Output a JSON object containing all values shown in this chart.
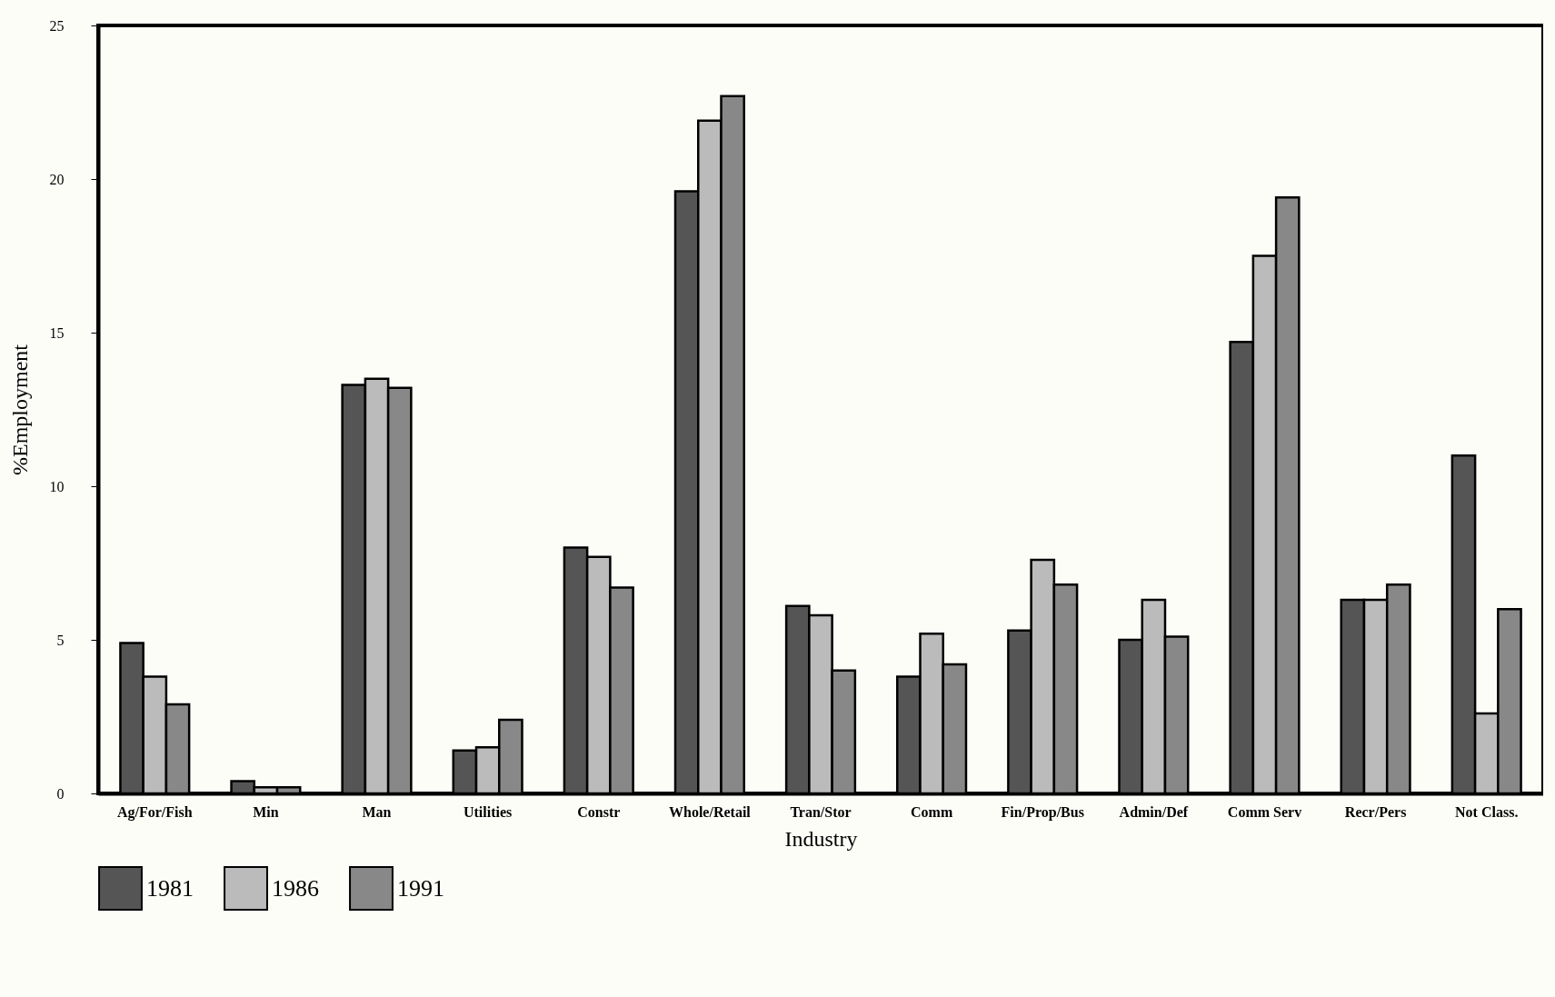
{
  "chart_data": {
    "type": "bar",
    "xlabel": "Industry",
    "ylabel": "%Employment",
    "categories": [
      "Ag/For/Fish",
      "Min",
      "Man",
      "Utilities",
      "Constr",
      "Whole/Retail",
      "Tran/Stor",
      "Comm",
      "Fin/Prop/Bus",
      "Admin/Def",
      "Comm Serv",
      "Recr/Pers",
      "Not Class."
    ],
    "series": [
      {
        "name": "1981",
        "color": "#555555",
        "values": [
          4.9,
          0.4,
          13.3,
          1.4,
          8.0,
          19.6,
          6.1,
          3.8,
          5.3,
          5.0,
          14.7,
          6.3,
          11.0
        ]
      },
      {
        "name": "1986",
        "color": "#bbbbbb",
        "values": [
          3.8,
          0.2,
          13.5,
          1.5,
          7.7,
          21.9,
          5.8,
          5.2,
          7.6,
          6.3,
          17.5,
          6.3,
          2.6
        ]
      },
      {
        "name": "1991",
        "color": "#888888",
        "values": [
          2.9,
          0.2,
          13.2,
          2.4,
          6.7,
          22.7,
          4.0,
          4.2,
          6.8,
          5.1,
          19.4,
          6.8,
          6.0
        ]
      }
    ],
    "ylim": [
      0,
      25
    ],
    "yticks": [
      0,
      5,
      10,
      15,
      20,
      25
    ],
    "grid": false,
    "legend": "bottom"
  }
}
